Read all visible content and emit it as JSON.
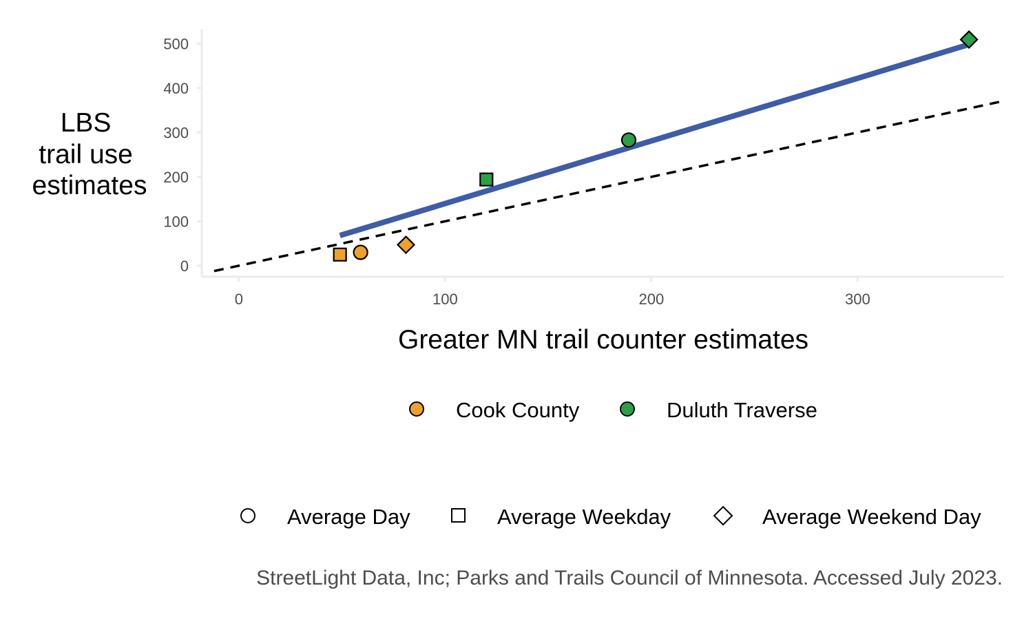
{
  "chart_data": {
    "type": "scatter",
    "title": "",
    "xlabel": "Greater MN trail counter estimates",
    "ylabel_lines": [
      "LBS",
      "trail use",
      "estimates"
    ],
    "xlim": [
      -18,
      371
    ],
    "ylim": [
      -25,
      533
    ],
    "x_ticks": [
      0,
      100,
      200,
      300
    ],
    "y_ticks": [
      0,
      100,
      200,
      300,
      400,
      500
    ],
    "grid": false,
    "legend_position": "bottom",
    "color_legend": [
      {
        "name": "Cook County",
        "color": "#f0a12c"
      },
      {
        "name": "Duluth Traverse",
        "color": "#2ca048"
      }
    ],
    "shape_legend": [
      {
        "name": "Average Day",
        "shape": "circle"
      },
      {
        "name": "Average Weekday",
        "shape": "square"
      },
      {
        "name": "Average Weekend Day",
        "shape": "diamond"
      }
    ],
    "points": [
      {
        "group": "Cook County",
        "shape": "square",
        "x": 49,
        "y": 25
      },
      {
        "group": "Cook County",
        "shape": "circle",
        "x": 59,
        "y": 30
      },
      {
        "group": "Cook County",
        "shape": "diamond",
        "x": 81,
        "y": 47
      },
      {
        "group": "Duluth Traverse",
        "shape": "square",
        "x": 120,
        "y": 194
      },
      {
        "group": "Duluth Traverse",
        "shape": "circle",
        "x": 189,
        "y": 283
      },
      {
        "group": "Duluth Traverse",
        "shape": "diamond",
        "x": 354,
        "y": 509
      }
    ],
    "fit_line": {
      "color": "#3f5ca8",
      "x": [
        49,
        354
      ],
      "y": [
        68,
        498
      ]
    },
    "reference_line": {
      "style": "dashed",
      "color": "#000000",
      "slope": 1,
      "intercept": 0
    }
  },
  "caption": "StreetLight Data, Inc; Parks and Trails Council of Minnesota. Accessed July 2023."
}
